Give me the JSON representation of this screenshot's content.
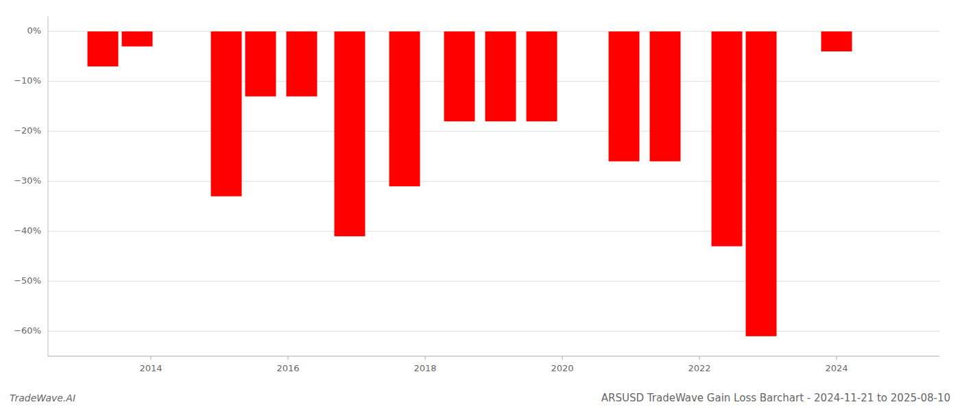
{
  "chart_data": {
    "type": "bar",
    "title": "ARSUSD TradeWave Gain Loss Barchart - 2024-11-21 to 2025-08-10",
    "annotations": [
      "TradeWave.AI"
    ],
    "x": [
      2013.3,
      2013.8,
      2015.1,
      2015.6,
      2016.2,
      2016.9,
      2017.7,
      2018.5,
      2019.1,
      2019.7,
      2020.9,
      2021.5,
      2022.4,
      2022.9,
      2024.0
    ],
    "values": [
      -7.0,
      -3.0,
      -33.0,
      -13.0,
      -13.0,
      -41.0,
      -31.0,
      -18.0,
      -18.0,
      -18.0,
      -26.0,
      -26.0,
      -43.0,
      -61.0,
      -4.0
    ],
    "color": "#ff0000",
    "xlim": [
      2012.5,
      2025.5
    ],
    "xticks": [
      2014,
      2016,
      2018,
      2020,
      2022,
      2024
    ],
    "ylim": [
      -65,
      3
    ],
    "yticks": [
      {
        "value": 0,
        "label": "0%"
      },
      {
        "value": -10,
        "label": "−10%"
      },
      {
        "value": -20,
        "label": "−20%"
      },
      {
        "value": -30,
        "label": "−30%"
      },
      {
        "value": -40,
        "label": "−40%"
      },
      {
        "value": -50,
        "label": "−50%"
      },
      {
        "value": -60,
        "label": "−60%"
      }
    ],
    "grid": true
  }
}
